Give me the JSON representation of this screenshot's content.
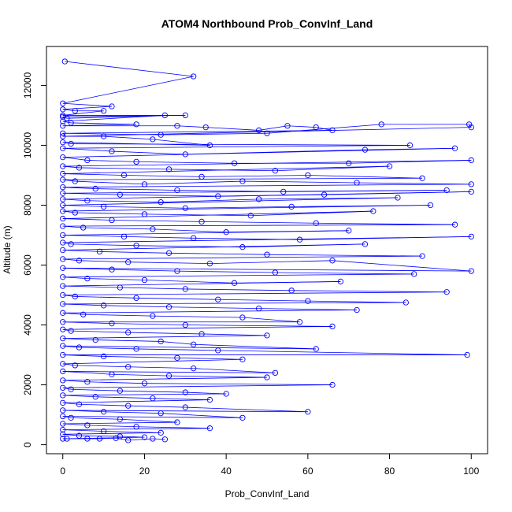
{
  "chart_data": {
    "type": "scatter",
    "title": "ATOM4 Northbound Prob_ConvInf_Land",
    "xlabel": "Prob_ConvInf_Land",
    "ylabel": "Altitude (m)",
    "xlim": [
      -4,
      104
    ],
    "ylim": [
      -300,
      13300
    ],
    "xticks": [
      0,
      20,
      40,
      60,
      80,
      100
    ],
    "yticks": [
      0,
      2000,
      4000,
      6000,
      8000,
      10000,
      12000
    ],
    "grid": false,
    "legend": "none",
    "marker": "open-circle",
    "connected": true,
    "color": "#0000ff",
    "series": [
      {
        "points": [
          [
            0.5,
            12800
          ],
          [
            32,
            12300
          ],
          [
            0,
            11400
          ],
          [
            12,
            11300
          ],
          [
            0,
            11200
          ],
          [
            3,
            11150
          ],
          [
            10,
            11150
          ],
          [
            0,
            11000
          ],
          [
            30,
            11000
          ],
          [
            0,
            10950
          ],
          [
            1,
            10900
          ],
          [
            25,
            11000
          ],
          [
            0,
            10800
          ],
          [
            2,
            10750
          ],
          [
            18,
            10700
          ],
          [
            0,
            10650
          ],
          [
            28,
            10650
          ],
          [
            35,
            10600
          ],
          [
            48,
            10500
          ],
          [
            55,
            10650
          ],
          [
            62,
            10600
          ],
          [
            66,
            10500
          ],
          [
            0,
            10400
          ],
          [
            24,
            10350
          ],
          [
            50,
            10400
          ],
          [
            78,
            10700
          ],
          [
            99.5,
            10700
          ],
          [
            100,
            10600
          ],
          [
            0,
            10300
          ],
          [
            10,
            10300
          ],
          [
            22,
            10200
          ],
          [
            36,
            10000
          ],
          [
            0,
            10100
          ],
          [
            2,
            10050
          ],
          [
            85,
            10000
          ],
          [
            0,
            9900
          ],
          [
            12,
            9800
          ],
          [
            30,
            9700
          ],
          [
            74,
            9850
          ],
          [
            96,
            9900
          ],
          [
            0,
            9600
          ],
          [
            6,
            9500
          ],
          [
            18,
            9450
          ],
          [
            42,
            9400
          ],
          [
            70,
            9400
          ],
          [
            100,
            9500
          ],
          [
            0,
            9300
          ],
          [
            4,
            9250
          ],
          [
            26,
            9200
          ],
          [
            52,
            9150
          ],
          [
            80,
            9300
          ],
          [
            0,
            9050
          ],
          [
            15,
            9000
          ],
          [
            34,
            8950
          ],
          [
            60,
            9000
          ],
          [
            88,
            8900
          ],
          [
            0,
            8850
          ],
          [
            3,
            8800
          ],
          [
            20,
            8700
          ],
          [
            44,
            8800
          ],
          [
            72,
            8750
          ],
          [
            100,
            8700
          ],
          [
            0,
            8600
          ],
          [
            8,
            8550
          ],
          [
            28,
            8500
          ],
          [
            54,
            8450
          ],
          [
            94,
            8500
          ],
          [
            0,
            8400
          ],
          [
            14,
            8350
          ],
          [
            38,
            8300
          ],
          [
            64,
            8350
          ],
          [
            100,
            8450
          ],
          [
            0,
            8200
          ],
          [
            6,
            8150
          ],
          [
            24,
            8100
          ],
          [
            48,
            8200
          ],
          [
            82,
            8250
          ],
          [
            0,
            8000
          ],
          [
            10,
            7950
          ],
          [
            30,
            7900
          ],
          [
            56,
            7950
          ],
          [
            90,
            8000
          ],
          [
            0,
            7800
          ],
          [
            3,
            7750
          ],
          [
            20,
            7700
          ],
          [
            46,
            7650
          ],
          [
            76,
            7800
          ],
          [
            0,
            7550
          ],
          [
            12,
            7500
          ],
          [
            34,
            7450
          ],
          [
            62,
            7400
          ],
          [
            96,
            7350
          ],
          [
            0,
            7300
          ],
          [
            5,
            7250
          ],
          [
            22,
            7200
          ],
          [
            40,
            7100
          ],
          [
            70,
            7150
          ],
          [
            0,
            7000
          ],
          [
            15,
            6950
          ],
          [
            32,
            6900
          ],
          [
            58,
            6850
          ],
          [
            100,
            6950
          ],
          [
            0,
            6750
          ],
          [
            2,
            6700
          ],
          [
            18,
            6650
          ],
          [
            44,
            6600
          ],
          [
            74,
            6700
          ],
          [
            0,
            6500
          ],
          [
            9,
            6450
          ],
          [
            26,
            6400
          ],
          [
            50,
            6350
          ],
          [
            88,
            6300
          ],
          [
            0,
            6200
          ],
          [
            4,
            6150
          ],
          [
            16,
            6100
          ],
          [
            36,
            6050
          ],
          [
            66,
            6150
          ],
          [
            100,
            5800
          ],
          [
            0,
            5900
          ],
          [
            12,
            5850
          ],
          [
            28,
            5800
          ],
          [
            52,
            5750
          ],
          [
            86,
            5700
          ],
          [
            0,
            5600
          ],
          [
            6,
            5550
          ],
          [
            20,
            5500
          ],
          [
            42,
            5400
          ],
          [
            68,
            5450
          ],
          [
            0,
            5300
          ],
          [
            14,
            5250
          ],
          [
            30,
            5200
          ],
          [
            56,
            5150
          ],
          [
            94,
            5100
          ],
          [
            0,
            5000
          ],
          [
            3,
            4950
          ],
          [
            18,
            4900
          ],
          [
            38,
            4850
          ],
          [
            60,
            4800
          ],
          [
            84,
            4750
          ],
          [
            0,
            4700
          ],
          [
            10,
            4650
          ],
          [
            26,
            4600
          ],
          [
            48,
            4550
          ],
          [
            72,
            4500
          ],
          [
            0,
            4400
          ],
          [
            5,
            4350
          ],
          [
            22,
            4300
          ],
          [
            44,
            4250
          ],
          [
            58,
            4100
          ],
          [
            0,
            4100
          ],
          [
            12,
            4050
          ],
          [
            30,
            4000
          ],
          [
            66,
            3950
          ],
          [
            0,
            3850
          ],
          [
            2,
            3800
          ],
          [
            16,
            3750
          ],
          [
            34,
            3700
          ],
          [
            50,
            3650
          ],
          [
            0,
            3550
          ],
          [
            8,
            3500
          ],
          [
            24,
            3450
          ],
          [
            32,
            3350
          ],
          [
            62,
            3200
          ],
          [
            0,
            3300
          ],
          [
            4,
            3250
          ],
          [
            18,
            3200
          ],
          [
            38,
            3150
          ],
          [
            99,
            3000
          ],
          [
            0,
            3000
          ],
          [
            10,
            2950
          ],
          [
            28,
            2900
          ],
          [
            44,
            2850
          ],
          [
            0,
            2700
          ],
          [
            3,
            2650
          ],
          [
            16,
            2600
          ],
          [
            32,
            2550
          ],
          [
            52,
            2400
          ],
          [
            0,
            2450
          ],
          [
            12,
            2350
          ],
          [
            26,
            2300
          ],
          [
            50,
            2250
          ],
          [
            0,
            2150
          ],
          [
            6,
            2100
          ],
          [
            20,
            2050
          ],
          [
            66,
            2000
          ],
          [
            0,
            1900
          ],
          [
            2,
            1850
          ],
          [
            14,
            1800
          ],
          [
            30,
            1750
          ],
          [
            40,
            1700
          ],
          [
            0,
            1650
          ],
          [
            8,
            1600
          ],
          [
            22,
            1550
          ],
          [
            36,
            1500
          ],
          [
            0,
            1400
          ],
          [
            4,
            1350
          ],
          [
            16,
            1300
          ],
          [
            30,
            1250
          ],
          [
            60,
            1100
          ],
          [
            0,
            1150
          ],
          [
            10,
            1100
          ],
          [
            24,
            1050
          ],
          [
            44,
            900
          ],
          [
            0,
            950
          ],
          [
            2,
            900
          ],
          [
            14,
            850
          ],
          [
            28,
            750
          ],
          [
            0,
            700
          ],
          [
            6,
            650
          ],
          [
            18,
            600
          ],
          [
            36,
            550
          ],
          [
            0,
            500
          ],
          [
            10,
            450
          ],
          [
            24,
            400
          ],
          [
            0,
            350
          ],
          [
            4,
            300
          ],
          [
            14,
            280
          ],
          [
            20,
            250
          ],
          [
            0,
            200
          ],
          [
            1,
            200
          ],
          [
            6,
            200
          ],
          [
            9,
            200
          ],
          [
            13,
            220
          ],
          [
            16,
            150
          ],
          [
            22,
            200
          ],
          [
            25,
            180
          ]
        ]
      }
    ]
  }
}
